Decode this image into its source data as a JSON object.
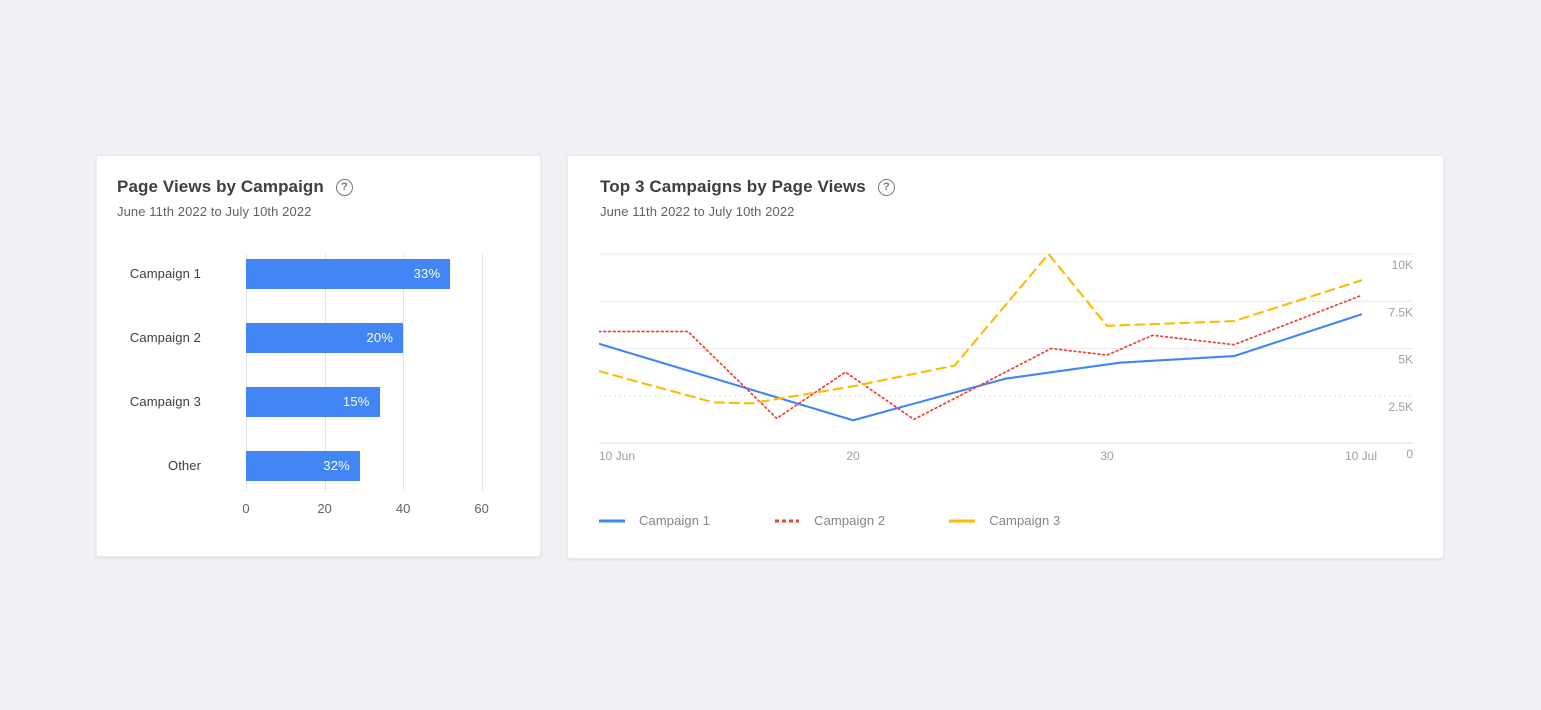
{
  "canvas": {
    "background": "#F0F1F4",
    "card_background": "#FFFFFF"
  },
  "bar_card": {
    "title": "Page Views by Campaign",
    "subtitle": "June 11th 2022 to July 10th 2022",
    "help_glyph": "?"
  },
  "line_card": {
    "title": "Top 3 Campaigns by Page Views",
    "subtitle": "June 11th 2022 to July 10th 2022",
    "help_glyph": "?"
  },
  "chart_data": [
    {
      "type": "bar",
      "orientation": "horizontal",
      "title": "Page Views by Campaign",
      "subtitle": "June 11th 2022 to July 10th 2022",
      "categories": [
        "Campaign 1",
        "Campaign 2",
        "Campaign 3",
        "Other"
      ],
      "values": [
        52,
        40,
        34,
        29
      ],
      "bar_labels": [
        "33%",
        "20%",
        "15%",
        "32%"
      ],
      "x_ticks": [
        0,
        20,
        40,
        60
      ],
      "xlim": [
        0,
        69
      ],
      "bar_color": "#4285F4",
      "grid": true,
      "gridline_color": "#E3E5E8"
    },
    {
      "type": "line",
      "title": "Top 3 Campaigns by Page Views",
      "subtitle": "June 11th 2022 to July 10th 2022",
      "x_axis": {
        "unit": "days since 10 Jun 2022",
        "range": [
          0,
          30
        ],
        "ticks": [
          {
            "day": 0,
            "label": "10 Jun"
          },
          {
            "day": 10,
            "label": "20"
          },
          {
            "day": 20,
            "label": "30"
          },
          {
            "day": 30,
            "label": "10 Jul"
          }
        ]
      },
      "y_axis": {
        "position": "right",
        "range": [
          0,
          10000
        ],
        "ticks": [
          {
            "value": 10000,
            "label": "10K"
          },
          {
            "value": 7500,
            "label": "7.5K"
          },
          {
            "value": 5000,
            "label": "5K"
          },
          {
            "value": 2500,
            "label": "2.5K"
          },
          {
            "value": 0,
            "label": "0"
          }
        ]
      },
      "series": [
        {
          "name": "Campaign 1",
          "color": "#4285F4",
          "style": "solid",
          "points": [
            [
              0,
              5250
            ],
            [
              10,
              1200
            ],
            [
              16,
              3400
            ],
            [
              20.5,
              4250
            ],
            [
              25,
              4600
            ],
            [
              30,
              6800
            ]
          ]
        },
        {
          "name": "Campaign 2",
          "color": "#EA4335",
          "style": "dotted",
          "points": [
            [
              0,
              5900
            ],
            [
              3.5,
              5900
            ],
            [
              7,
              1300
            ],
            [
              9.7,
              3750
            ],
            [
              12.4,
              1250
            ],
            [
              17.8,
              5000
            ],
            [
              20,
              4650
            ],
            [
              21.8,
              5700
            ],
            [
              25,
              5200
            ],
            [
              30,
              7800
            ]
          ]
        },
        {
          "name": "Campaign 3",
          "color": "#FBBC04",
          "style": "dashed",
          "points": [
            [
              0,
              3800
            ],
            [
              4.5,
              2150
            ],
            [
              6,
              2100
            ],
            [
              10,
              3000
            ],
            [
              14,
              4100
            ],
            [
              17.7,
              10000
            ],
            [
              20,
              6200
            ],
            [
              25,
              6450
            ],
            [
              30,
              8600
            ]
          ]
        }
      ],
      "legend": [
        "Campaign 1",
        "Campaign 2",
        "Campaign 3"
      ],
      "legend_position": "bottom",
      "grid": true,
      "gridline_color": "#E8EAED",
      "axis_label_color": "#9AA0A6"
    }
  ]
}
